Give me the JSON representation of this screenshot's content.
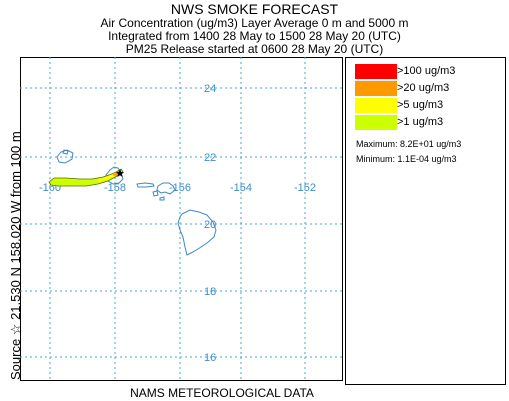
{
  "header": {
    "title": "NWS SMOKE FORECAST",
    "subtitle_1": "Air Concentration (ug/m3) Layer Average    0 m and  5000 m",
    "subtitle_2": "Integrated from 1400 28 May to 1500 28 May 20 (UTC)",
    "subtitle_3": "PM25 Release started at 0600 28 May 20 (UTC)"
  },
  "side_label": "Source ☆ 21.530 N 158.020 W    from  100 m",
  "footer": "NAMS METEOROLOGICAL DATA",
  "map": {
    "lat_labels": [
      "24",
      "22",
      "20",
      "18",
      "16"
    ],
    "lon_labels": [
      "-160",
      "-158",
      "-156",
      "-154",
      "-152"
    ],
    "grid_color": "#4aa3d9",
    "coast_color": "#3d88c2",
    "label_color": "#3d8fc7"
  },
  "legend": {
    "items": [
      {
        "label": ">100 ug/m3",
        "color": "#ff0000"
      },
      {
        "label": ">20 ug/m3",
        "color": "#ff9900"
      },
      {
        "label": ">5 ug/m3",
        "color": "#ffff00"
      },
      {
        "label": ">1 ug/m3",
        "color": "#ccff00"
      }
    ],
    "maximum": "Maximum: 8.2E+01 ug/m3",
    "minimum": "Minimum: 1.1E-04 ug/m3"
  }
}
